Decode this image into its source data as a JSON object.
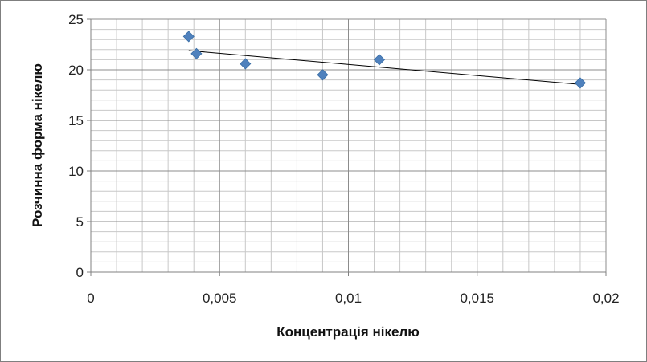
{
  "chart_data": {
    "type": "scatter",
    "xlabel": "Концентрація нікелю",
    "ylabel": "Розчинна форма нікелю",
    "xlim": [
      0,
      0.02
    ],
    "ylim": [
      0,
      25
    ],
    "x_ticks": [
      "0",
      "0,005",
      "0,01",
      "0,015",
      "0,02"
    ],
    "y_ticks": [
      "0",
      "5",
      "10",
      "15",
      "20",
      "25"
    ],
    "grid": true,
    "legend": "none",
    "marker_color": "#4f81bd",
    "series": [
      {
        "points": [
          {
            "x": 0.0038,
            "y": 23.3
          },
          {
            "x": 0.0041,
            "y": 21.6
          },
          {
            "x": 0.006,
            "y": 20.6
          },
          {
            "x": 0.009,
            "y": 19.5
          },
          {
            "x": 0.0112,
            "y": 21.0
          },
          {
            "x": 0.019,
            "y": 18.7
          }
        ]
      }
    ],
    "trendline": {
      "type": "linear",
      "x": [
        0.0038,
        0.019
      ],
      "y": [
        21.9,
        18.55
      ]
    }
  }
}
